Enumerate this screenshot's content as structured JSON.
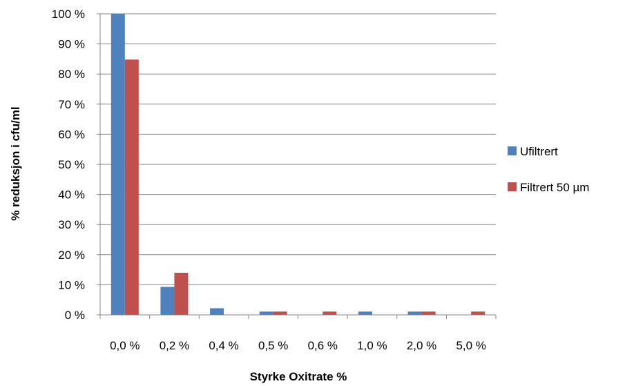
{
  "chart_data": {
    "type": "bar",
    "categories": [
      "0,0 %",
      "0,2 %",
      "0,4 %",
      "0,5 %",
      "0,6 %",
      "1,0 %",
      "2,0 %",
      "5,0 %"
    ],
    "series": [
      {
        "name": "Ufiltrert",
        "color": "#4f81bd",
        "values": [
          100,
          9.3,
          2.2,
          1.1,
          0,
          1.1,
          1.1,
          0
        ]
      },
      {
        "name": "Filtrert 50 µm",
        "color": "#c0504d",
        "values": [
          84.8,
          14,
          0,
          1.1,
          1.1,
          0,
          1.1,
          1.1
        ]
      }
    ],
    "title": "",
    "xlabel": "Styrke Oxitrate %",
    "ylabel": "% reduksjon i cfu/ml",
    "ylim": [
      0,
      100
    ],
    "yticks": [
      "0 %",
      "10 %",
      "20 %",
      "30 %",
      "40 %",
      "50 %",
      "60 %",
      "70 %",
      "80 %",
      "90 %",
      "100 %"
    ],
    "grid": true,
    "legend_position": "right"
  }
}
